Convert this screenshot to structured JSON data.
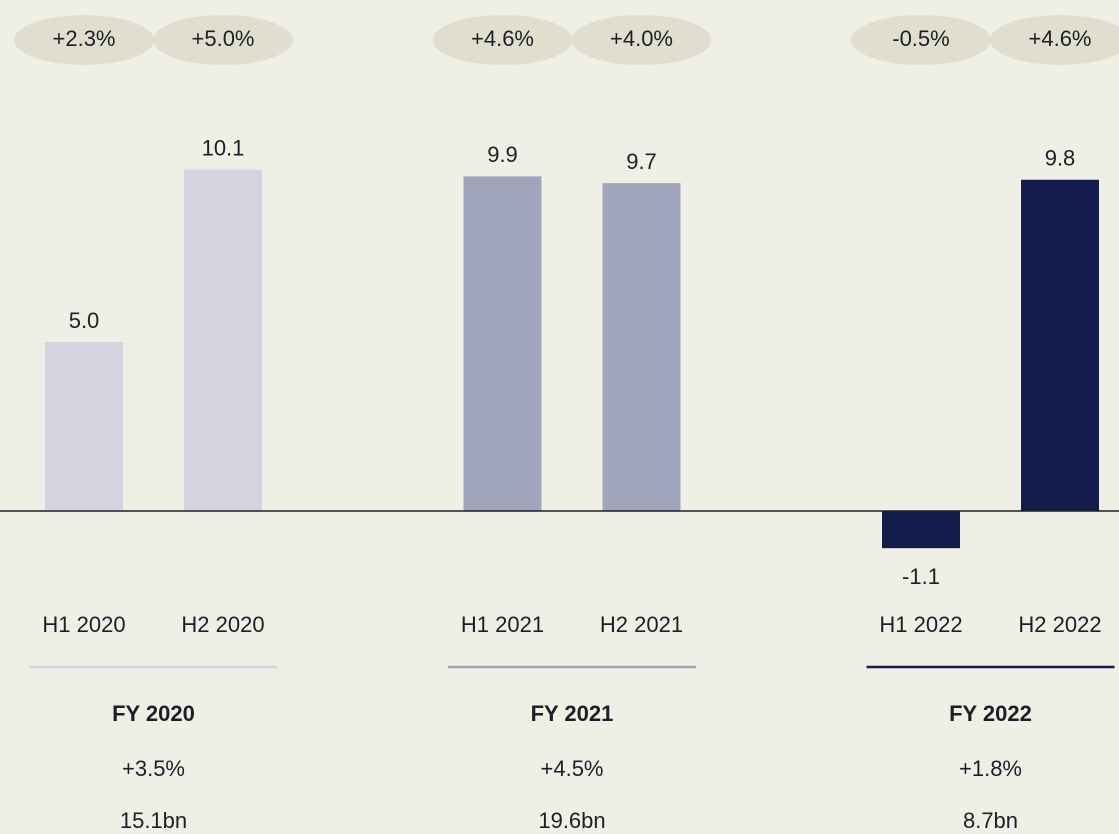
{
  "chart_data": {
    "type": "bar",
    "categories": [
      "H1 2020",
      "H2 2020",
      "H1 2021",
      "H2 2021",
      "H1 2022",
      "H2 2022"
    ],
    "values": [
      5.0,
      10.1,
      9.9,
      9.7,
      -1.1,
      9.8
    ],
    "value_labels": [
      "5.0",
      "10.1",
      "9.9",
      "9.7",
      "-1.1",
      "9.8"
    ],
    "colors": [
      "#d3d4df",
      "#d3d4df",
      "#a1a5bb",
      "#a1a5bb",
      "#141c4e",
      "#141c4e"
    ],
    "growth_labels": [
      "+2.3%",
      "+5.0%",
      "+4.6%",
      "+4.0%",
      "-0.5%",
      "+4.6%"
    ],
    "groups": [
      {
        "name": "FY 2020",
        "growth": "+3.5%",
        "total": "15.1bn",
        "color": "#d3d4df"
      },
      {
        "name": "FY 2021",
        "growth": "+4.5%",
        "total": "19.6bn",
        "color": "#a1a5bb"
      },
      {
        "name": "FY 2022",
        "growth": "+1.8%",
        "total": "8.7bn",
        "color": "#141c4e"
      }
    ]
  }
}
